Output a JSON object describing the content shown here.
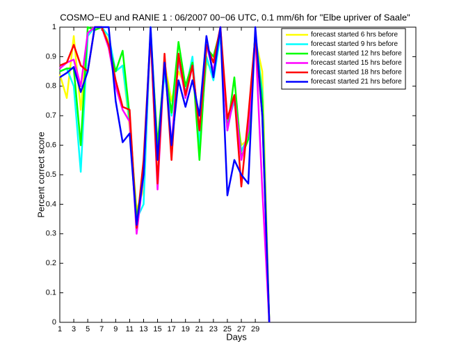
{
  "chart_data": {
    "type": "line",
    "title": "COSMO−EU and RANIE 1 : 06/2007 00−06 UTC, 0.1 mm/6h for \"Elbe upriver of Saale\"",
    "x_label": "Days",
    "y_label": "Percent correct score",
    "x": [
      1,
      2,
      3,
      4,
      5,
      6,
      7,
      8,
      9,
      10,
      11,
      12,
      13,
      14,
      15,
      16,
      17,
      18,
      19,
      20,
      21,
      22,
      23,
      24,
      25,
      26,
      27,
      28,
      29,
      30,
      31
    ],
    "xlim": [
      1,
      52
    ],
    "xticks": [
      1,
      3,
      5,
      7,
      9,
      11,
      13,
      15,
      17,
      19,
      21,
      23,
      25,
      27,
      29
    ],
    "ylim": [
      0,
      1
    ],
    "yticks": [
      0,
      0.1,
      0.2,
      0.3,
      0.4,
      0.5,
      0.6,
      0.7,
      0.8,
      0.9,
      1
    ],
    "legend": "top-right",
    "series": [
      {
        "name": "forecast started 6 hrs before",
        "color": "#ffff00",
        "values": [
          0.84,
          0.76,
          0.97,
          0.72,
          0.97,
          1,
          1,
          0.95,
          0.85,
          0.87,
          0.66,
          0.38,
          0.45,
          0.98,
          0.57,
          0.88,
          0.75,
          0.85,
          0.8,
          0.88,
          0.62,
          0.88,
          0.85,
          0.98,
          0.68,
          0.75,
          0.6,
          0.62,
          0.96,
          0.85,
          0
        ]
      },
      {
        "name": "forecast started 9 hrs before",
        "color": "#00ffff",
        "values": [
          0.85,
          0.86,
          0.8,
          0.51,
          0.97,
          1,
          1,
          0.97,
          0.85,
          0.87,
          0.68,
          0.35,
          0.4,
          1,
          0.58,
          0.84,
          0.7,
          0.88,
          0.78,
          0.9,
          0.6,
          0.9,
          0.82,
          0.97,
          0.67,
          0.75,
          0.58,
          0.63,
          0.98,
          0.78,
          0
        ]
      },
      {
        "name": "forecast started 12 hrs before",
        "color": "#00ff00",
        "values": [
          0.85,
          0.86,
          0.86,
          0.6,
          1,
          0.99,
          1,
          0.94,
          0.85,
          0.92,
          0.7,
          0.35,
          0.5,
          0.98,
          0.6,
          0.87,
          0.71,
          0.95,
          0.8,
          0.88,
          0.55,
          0.93,
          0.9,
          0.99,
          0.65,
          0.83,
          0.56,
          0.62,
          0.98,
          0.75,
          0
        ]
      },
      {
        "name": "forecast started 15 hrs before",
        "color": "#ff00ff",
        "values": [
          0.86,
          0.88,
          0.89,
          0.8,
          0.98,
          1,
          1,
          0.93,
          0.8,
          0.72,
          0.68,
          0.3,
          0.5,
          0.98,
          0.45,
          0.9,
          0.6,
          0.9,
          0.76,
          0.87,
          0.65,
          0.94,
          0.85,
          1,
          0.65,
          0.77,
          0.55,
          0.65,
          0.97,
          0.45,
          0
        ]
      },
      {
        "name": "forecast started 18 hrs before",
        "color": "#ff0000",
        "values": [
          0.87,
          0.88,
          0.94,
          0.87,
          0.85,
          1,
          1,
          0.94,
          0.82,
          0.73,
          0.72,
          0.32,
          0.55,
          0.98,
          0.47,
          0.91,
          0.55,
          0.91,
          0.77,
          0.87,
          0.65,
          0.94,
          0.88,
          1,
          0.69,
          0.77,
          0.46,
          0.7,
          0.97,
          0.7,
          0
        ]
      },
      {
        "name": "forecast started 21 hrs before",
        "color": "#0000ff",
        "values": [
          0.83,
          0.845,
          0.865,
          0.78,
          0.85,
          1,
          1,
          1,
          0.75,
          0.61,
          0.64,
          0.33,
          0.5,
          1,
          0.55,
          0.88,
          0.6,
          0.82,
          0.73,
          0.82,
          0.7,
          0.97,
          0.83,
          1,
          0.43,
          0.55,
          0.5,
          0.47,
          1,
          0.7,
          0
        ]
      }
    ]
  }
}
